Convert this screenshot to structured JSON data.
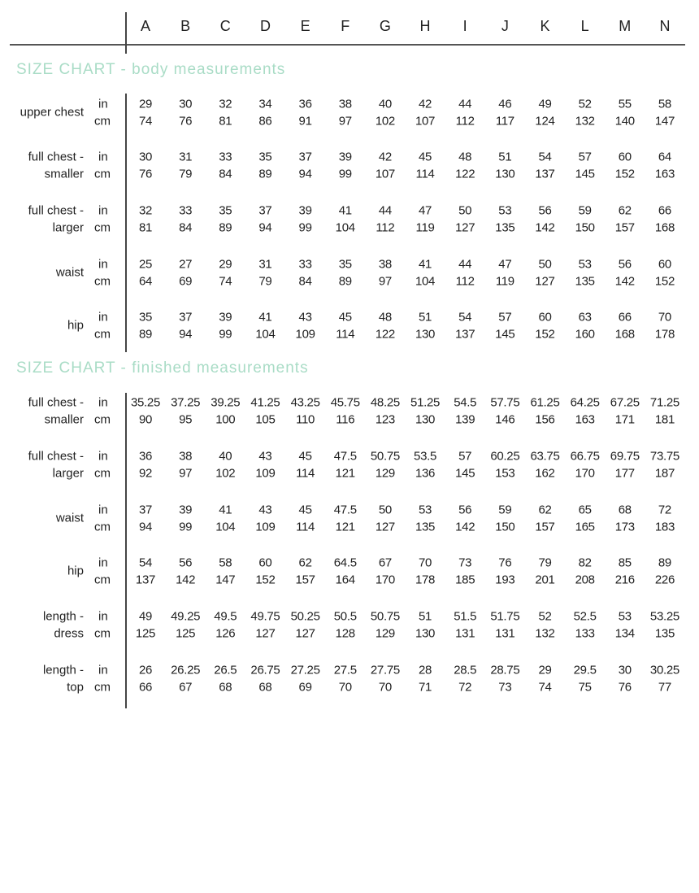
{
  "sizes": [
    "A",
    "B",
    "C",
    "D",
    "E",
    "F",
    "G",
    "H",
    "I",
    "J",
    "K",
    "L",
    "M",
    "N"
  ],
  "units": {
    "in": "in",
    "cm": "cm"
  },
  "sections": [
    {
      "title": "SIZE CHART - body measurements",
      "rows": [
        {
          "label": [
            "upper chest"
          ],
          "in": [
            "29",
            "30",
            "32",
            "34",
            "36",
            "38",
            "40",
            "42",
            "44",
            "46",
            "49",
            "52",
            "55",
            "58"
          ],
          "cm": [
            "74",
            "76",
            "81",
            "86",
            "91",
            "97",
            "102",
            "107",
            "112",
            "117",
            "124",
            "132",
            "140",
            "147"
          ]
        },
        {
          "label": [
            "full chest -",
            "smaller"
          ],
          "in": [
            "30",
            "31",
            "33",
            "35",
            "37",
            "39",
            "42",
            "45",
            "48",
            "51",
            "54",
            "57",
            "60",
            "64"
          ],
          "cm": [
            "76",
            "79",
            "84",
            "89",
            "94",
            "99",
            "107",
            "114",
            "122",
            "130",
            "137",
            "145",
            "152",
            "163"
          ]
        },
        {
          "label": [
            "full chest -",
            "larger"
          ],
          "in": [
            "32",
            "33",
            "35",
            "37",
            "39",
            "41",
            "44",
            "47",
            "50",
            "53",
            "56",
            "59",
            "62",
            "66"
          ],
          "cm": [
            "81",
            "84",
            "89",
            "94",
            "99",
            "104",
            "112",
            "119",
            "127",
            "135",
            "142",
            "150",
            "157",
            "168"
          ]
        },
        {
          "label": [
            "waist"
          ],
          "in": [
            "25",
            "27",
            "29",
            "31",
            "33",
            "35",
            "38",
            "41",
            "44",
            "47",
            "50",
            "53",
            "56",
            "60"
          ],
          "cm": [
            "64",
            "69",
            "74",
            "79",
            "84",
            "89",
            "97",
            "104",
            "112",
            "119",
            "127",
            "135",
            "142",
            "152"
          ]
        },
        {
          "label": [
            "hip"
          ],
          "in": [
            "35",
            "37",
            "39",
            "41",
            "43",
            "45",
            "48",
            "51",
            "54",
            "57",
            "60",
            "63",
            "66",
            "70"
          ],
          "cm": [
            "89",
            "94",
            "99",
            "104",
            "109",
            "114",
            "122",
            "130",
            "137",
            "145",
            "152",
            "160",
            "168",
            "178"
          ]
        }
      ]
    },
    {
      "title": "SIZE CHART - finished measurements",
      "rows": [
        {
          "label": [
            "full chest -",
            "smaller"
          ],
          "in": [
            "35.25",
            "37.25",
            "39.25",
            "41.25",
            "43.25",
            "45.75",
            "48.25",
            "51.25",
            "54.5",
            "57.75",
            "61.25",
            "64.25",
            "67.25",
            "71.25"
          ],
          "cm": [
            "90",
            "95",
            "100",
            "105",
            "110",
            "116",
            "123",
            "130",
            "139",
            "146",
            "156",
            "163",
            "171",
            "181"
          ]
        },
        {
          "label": [
            "full chest -",
            "larger"
          ],
          "in": [
            "36",
            "38",
            "40",
            "43",
            "45",
            "47.5",
            "50.75",
            "53.5",
            "57",
            "60.25",
            "63.75",
            "66.75",
            "69.75",
            "73.75"
          ],
          "cm": [
            "92",
            "97",
            "102",
            "109",
            "114",
            "121",
            "129",
            "136",
            "145",
            "153",
            "162",
            "170",
            "177",
            "187"
          ]
        },
        {
          "label": [
            "waist"
          ],
          "in": [
            "37",
            "39",
            "41",
            "43",
            "45",
            "47.5",
            "50",
            "53",
            "56",
            "59",
            "62",
            "65",
            "68",
            "72"
          ],
          "cm": [
            "94",
            "99",
            "104",
            "109",
            "114",
            "121",
            "127",
            "135",
            "142",
            "150",
            "157",
            "165",
            "173",
            "183"
          ]
        },
        {
          "label": [
            "hip"
          ],
          "in": [
            "54",
            "56",
            "58",
            "60",
            "62",
            "64.5",
            "67",
            "70",
            "73",
            "76",
            "79",
            "82",
            "85",
            "89"
          ],
          "cm": [
            "137",
            "142",
            "147",
            "152",
            "157",
            "164",
            "170",
            "178",
            "185",
            "193",
            "201",
            "208",
            "216",
            "226"
          ]
        },
        {
          "label": [
            "length -",
            "dress"
          ],
          "in": [
            "49",
            "49.25",
            "49.5",
            "49.75",
            "50.25",
            "50.5",
            "50.75",
            "51",
            "51.5",
            "51.75",
            "52",
            "52.5",
            "53",
            "53.25"
          ],
          "cm": [
            "125",
            "125",
            "126",
            "127",
            "127",
            "128",
            "129",
            "130",
            "131",
            "131",
            "132",
            "133",
            "134",
            "135"
          ]
        },
        {
          "label": [
            "length -",
            "top"
          ],
          "in": [
            "26",
            "26.25",
            "26.5",
            "26.75",
            "27.25",
            "27.5",
            "27.75",
            "28",
            "28.5",
            "28.75",
            "29",
            "29.5",
            "30",
            "30.25"
          ],
          "cm": [
            "66",
            "67",
            "68",
            "68",
            "69",
            "70",
            "70",
            "71",
            "72",
            "73",
            "74",
            "75",
            "76",
            "77"
          ]
        }
      ]
    }
  ],
  "colors": {
    "section_title": "#a9dcc6",
    "text": "#222222"
  }
}
